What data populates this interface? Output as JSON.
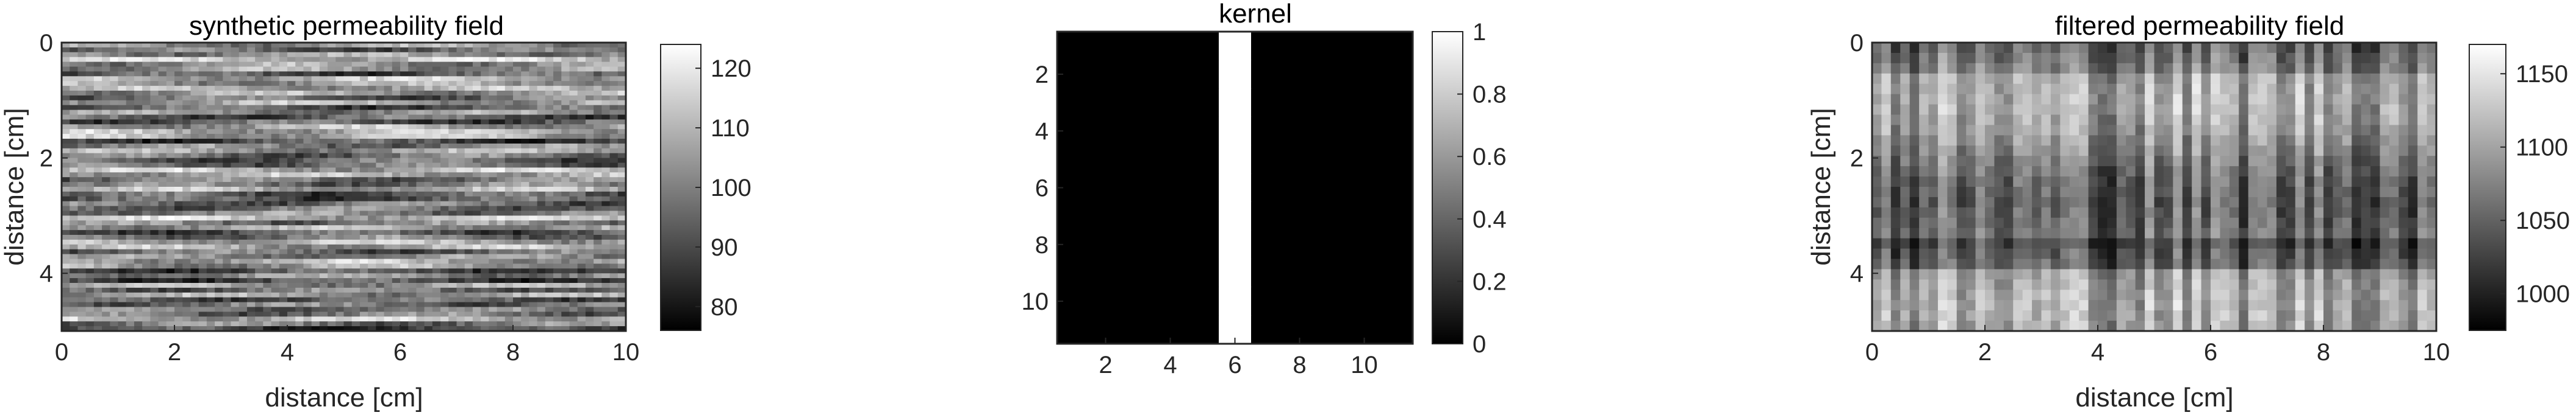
{
  "chart_data": [
    {
      "type": "heatmap",
      "title": "synthetic permeability field",
      "xlabel": "distance [cm]",
      "ylabel": "distance [cm]",
      "xlim": [
        0,
        10
      ],
      "ylim": [
        0,
        5
      ],
      "y_direction": "reversed",
      "xticks": [
        0,
        2,
        4,
        6,
        8,
        10
      ],
      "yticks": [
        0,
        2,
        4
      ],
      "colormap": "gray",
      "texture": "horizontal streaks",
      "colorbar": {
        "ticks": [
          80,
          90,
          100,
          110,
          120
        ],
        "clim": [
          76,
          124
        ]
      }
    },
    {
      "type": "heatmap",
      "title": "kernel",
      "xlabel": "",
      "ylabel": "",
      "xlim": [
        0.5,
        11.5
      ],
      "ylim": [
        0.5,
        11.5
      ],
      "y_direction": "reversed",
      "xticks": [
        2,
        4,
        6,
        8,
        10
      ],
      "yticks": [
        2,
        4,
        6,
        8,
        10
      ],
      "colormap": "gray",
      "kernel_column_one": 6,
      "colorbar": {
        "ticks": [
          0,
          0.2,
          0.4,
          0.6,
          0.8,
          1
        ],
        "clim": [
          0,
          1
        ]
      }
    },
    {
      "type": "heatmap",
      "title": "filtered permeability field",
      "xlabel": "distance [cm]",
      "ylabel": "distance [cm]",
      "xlim": [
        0,
        10
      ],
      "ylim": [
        0,
        5
      ],
      "y_direction": "reversed",
      "xticks": [
        0,
        2,
        4,
        6,
        8,
        10
      ],
      "yticks": [
        0,
        2,
        4
      ],
      "colormap": "gray",
      "texture": "vertical blocks",
      "colorbar": {
        "ticks": [
          1000,
          1050,
          1100,
          1150
        ],
        "clim": [
          975,
          1170
        ]
      }
    }
  ]
}
